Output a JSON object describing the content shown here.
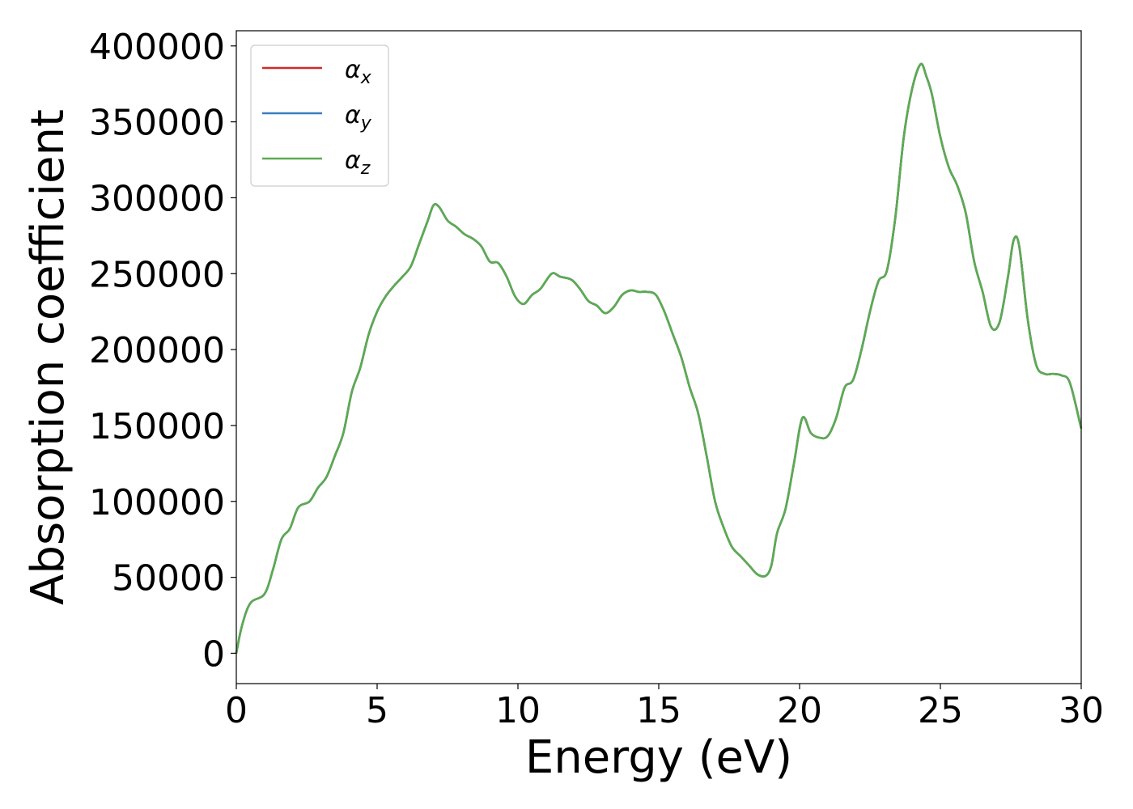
{
  "chart_data": {
    "type": "line",
    "xlabel": "Energy (eV)",
    "ylabel": "Absorption coefficient",
    "xlim": [
      0,
      30
    ],
    "ylim": [
      -20000,
      410000
    ],
    "xticks": [
      0,
      5,
      10,
      15,
      20,
      25,
      30
    ],
    "yticks": [
      0,
      50000,
      100000,
      150000,
      200000,
      250000,
      300000,
      350000,
      400000
    ],
    "grid": false,
    "legend_position": "top-left",
    "x": [
      0,
      0.2,
      0.5,
      1.0,
      1.3,
      1.6,
      1.9,
      2.2,
      2.6,
      2.9,
      3.2,
      3.5,
      3.8,
      4.1,
      4.4,
      4.7,
      5.0,
      5.3,
      5.6,
      5.9,
      6.2,
      6.5,
      6.8,
      7.0,
      7.2,
      7.5,
      7.8,
      8.1,
      8.4,
      8.7,
      9.0,
      9.3,
      9.6,
      9.9,
      10.2,
      10.5,
      10.8,
      11.2,
      11.5,
      11.9,
      12.2,
      12.5,
      12.8,
      13.1,
      13.4,
      13.7,
      14.0,
      14.3,
      14.6,
      14.9,
      15.2,
      15.5,
      15.8,
      16.1,
      16.4,
      16.7,
      17.0,
      17.3,
      17.6,
      17.9,
      18.2,
      18.5,
      18.8,
      19.0,
      19.2,
      19.5,
      19.8,
      20.1,
      20.4,
      20.7,
      21.0,
      21.3,
      21.6,
      21.9,
      22.2,
      22.5,
      22.8,
      23.1,
      23.4,
      23.7,
      24.0,
      24.3,
      24.5,
      24.7,
      25.0,
      25.3,
      25.6,
      25.9,
      26.2,
      26.5,
      26.8,
      27.1,
      27.4,
      27.6,
      27.8,
      28.1,
      28.4,
      28.7,
      29.0,
      29.3,
      29.6,
      30.0
    ],
    "series": [
      {
        "name": "α_x",
        "color": "#d62728",
        "values": [
          0,
          18000,
          33000,
          39000,
          55000,
          75000,
          82000,
          96000,
          100000,
          109000,
          116000,
          130000,
          145000,
          172000,
          188000,
          210000,
          225000,
          235000,
          242000,
          248000,
          255000,
          270000,
          285000,
          295000,
          294000,
          285000,
          281000,
          276000,
          273000,
          268000,
          258000,
          257000,
          248000,
          235000,
          230000,
          236000,
          240000,
          250000,
          248000,
          246000,
          240000,
          232000,
          229000,
          224000,
          228000,
          236000,
          239000,
          238000,
          238000,
          236000,
          225000,
          210000,
          195000,
          175000,
          158000,
          130000,
          100000,
          83000,
          70000,
          64000,
          58000,
          52000,
          51000,
          58000,
          79000,
          95000,
          125000,
          155000,
          145000,
          142000,
          143000,
          155000,
          175000,
          180000,
          200000,
          225000,
          245000,
          252000,
          287000,
          340000,
          372000,
          388000,
          380000,
          368000,
          340000,
          320000,
          308000,
          290000,
          258000,
          238000,
          215000,
          218000,
          248000,
          272000,
          268000,
          220000,
          190000,
          184000,
          184000,
          183000,
          178000,
          148000
        ]
      },
      {
        "name": "α_y",
        "color": "#3a7dbf",
        "values": [
          0,
          18000,
          33000,
          39000,
          55000,
          75000,
          82000,
          96000,
          100000,
          109000,
          116000,
          130000,
          145000,
          172000,
          188000,
          210000,
          225000,
          235000,
          242000,
          248000,
          255000,
          270000,
          285000,
          295000,
          294000,
          285000,
          281000,
          276000,
          273000,
          268000,
          258000,
          257000,
          248000,
          235000,
          230000,
          236000,
          240000,
          250000,
          248000,
          246000,
          240000,
          232000,
          229000,
          224000,
          228000,
          236000,
          239000,
          238000,
          238000,
          236000,
          225000,
          210000,
          195000,
          175000,
          158000,
          130000,
          100000,
          83000,
          70000,
          64000,
          58000,
          52000,
          51000,
          58000,
          79000,
          95000,
          125000,
          155000,
          145000,
          142000,
          143000,
          155000,
          175000,
          180000,
          200000,
          225000,
          245000,
          252000,
          287000,
          340000,
          372000,
          388000,
          380000,
          368000,
          340000,
          320000,
          308000,
          290000,
          258000,
          238000,
          215000,
          218000,
          248000,
          272000,
          268000,
          220000,
          190000,
          184000,
          184000,
          183000,
          178000,
          148000
        ]
      },
      {
        "name": "α_z",
        "color": "#5aac50",
        "values": [
          0,
          18000,
          33000,
          39000,
          55000,
          75000,
          82000,
          96000,
          100000,
          109000,
          116000,
          130000,
          145000,
          172000,
          188000,
          210000,
          225000,
          235000,
          242000,
          248000,
          255000,
          270000,
          285000,
          295000,
          294000,
          285000,
          281000,
          276000,
          273000,
          268000,
          258000,
          257000,
          248000,
          235000,
          230000,
          236000,
          240000,
          250000,
          248000,
          246000,
          240000,
          232000,
          229000,
          224000,
          228000,
          236000,
          239000,
          238000,
          238000,
          236000,
          225000,
          210000,
          195000,
          175000,
          158000,
          130000,
          100000,
          83000,
          70000,
          64000,
          58000,
          52000,
          51000,
          58000,
          79000,
          95000,
          125000,
          155000,
          145000,
          142000,
          143000,
          155000,
          175000,
          180000,
          200000,
          225000,
          245000,
          252000,
          287000,
          340000,
          372000,
          388000,
          380000,
          368000,
          340000,
          320000,
          308000,
          290000,
          258000,
          238000,
          215000,
          218000,
          248000,
          272000,
          268000,
          220000,
          190000,
          184000,
          184000,
          183000,
          178000,
          148000
        ]
      }
    ],
    "legend": [
      {
        "symbol": "α",
        "subscript": "x"
      },
      {
        "symbol": "α",
        "subscript": "y"
      },
      {
        "symbol": "α",
        "subscript": "z"
      }
    ]
  }
}
